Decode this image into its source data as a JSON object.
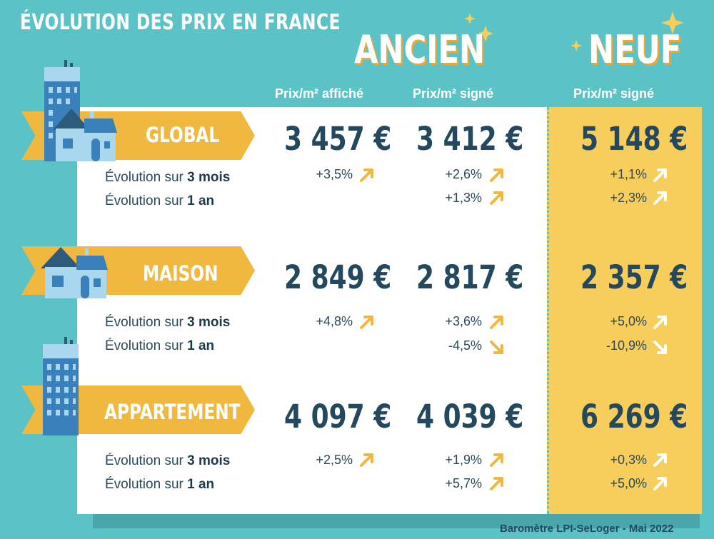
{
  "title": "ÉVOLUTION DES PRIX EN FRANCE",
  "headers": {
    "ancien": "ANCIEN",
    "neuf": "NEUF"
  },
  "columns": {
    "col1": "Prix/m² affiché",
    "col2": "Prix/m² signé",
    "col3": "Prix/m² signé"
  },
  "evo": {
    "prefix": "Évolution sur ",
    "three": "3 mois",
    "one": "1 an"
  },
  "rows": [
    {
      "label": "GLOBAL",
      "prices": [
        "3 457 €",
        "3 412 €",
        "5 148 €"
      ],
      "three": [
        "+3,5%",
        "+2,6%",
        "+1,1%"
      ],
      "one": [
        "",
        "+1,3%",
        "+2,3%"
      ]
    },
    {
      "label": "MAISON",
      "prices": [
        "2 849 €",
        "2 817 €",
        "2 357 €"
      ],
      "three": [
        "+4,8%",
        "+3,6%",
        "+5,0%"
      ],
      "one": [
        "",
        "-4,5%",
        "-10,9%"
      ]
    },
    {
      "label": "APPARTEMENT",
      "prices": [
        "4 097 €",
        "4 039 €",
        "6 269 €"
      ],
      "three": [
        "+2,5%",
        "+1,9%",
        "+0,3%"
      ],
      "one": [
        "",
        "+5,7%",
        "+5,0%"
      ]
    }
  ],
  "credit": "Baromètre LPI-SeLoger - Mai 2022",
  "colors": {
    "background": "#5bc2c6",
    "banner": "#f0b83f",
    "neuf_column": "#f7ce5b",
    "price_text": "#24485d",
    "arrow_ancien": "#f0b83f",
    "arrow_neuf": "#ffffff"
  }
}
